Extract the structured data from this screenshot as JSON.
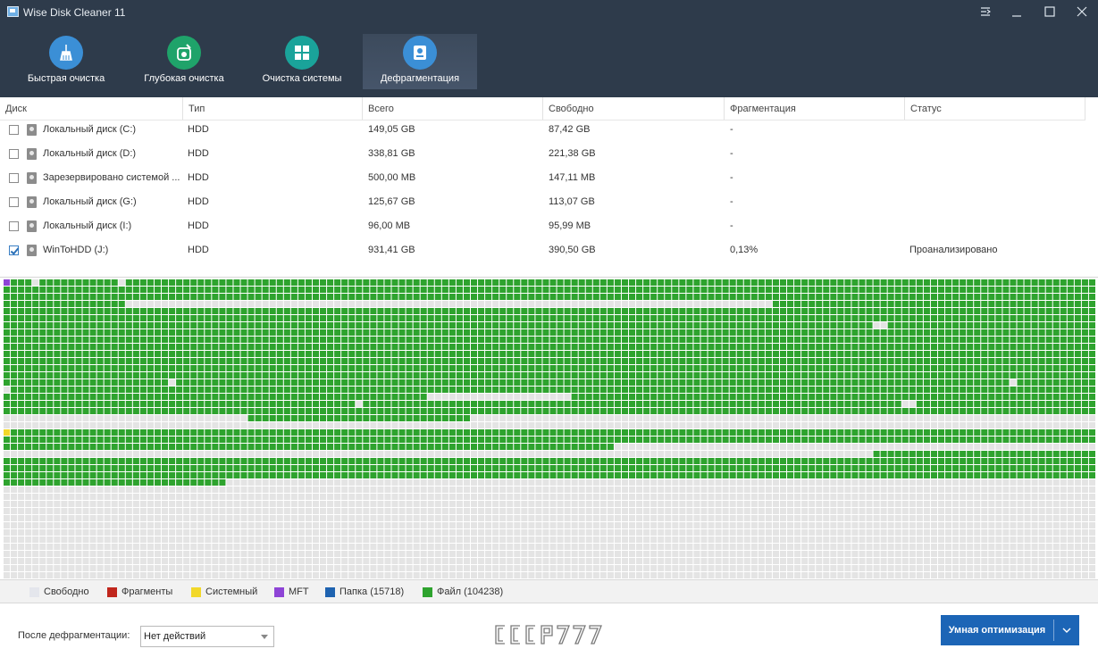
{
  "window": {
    "title": "Wise Disk Cleaner 11"
  },
  "tabs": [
    {
      "label": "Быстрая очистка",
      "icon": "broom-icon",
      "color": "#3b8fd6",
      "active": false
    },
    {
      "label": "Глубокая очистка",
      "icon": "deep-clean-icon",
      "color": "#1fa36a",
      "active": false
    },
    {
      "label": "Очистка системы",
      "icon": "windows-icon",
      "color": "#1aa39a",
      "active": false
    },
    {
      "label": "Дефрагментация",
      "icon": "defrag-icon",
      "color": "#3b8fd6",
      "active": true
    }
  ],
  "table": {
    "columns": [
      "Диск",
      "Тип",
      "Всего",
      "Свободно",
      "Фрагментация",
      "Статус"
    ],
    "rows": [
      {
        "checked": false,
        "disk": "Локальный диск (C:)",
        "type": "HDD",
        "total": "149,05 GB",
        "free": "87,42 GB",
        "frag": "-",
        "status": ""
      },
      {
        "checked": false,
        "disk": "Локальный диск (D:)",
        "type": "HDD",
        "total": "338,81 GB",
        "free": "221,38 GB",
        "frag": "-",
        "status": ""
      },
      {
        "checked": false,
        "disk": "Зарезервировано системой ...",
        "type": "HDD",
        "total": "500,00 MB",
        "free": "147,11 MB",
        "frag": "-",
        "status": ""
      },
      {
        "checked": false,
        "disk": "Локальный диск (G:)",
        "type": "HDD",
        "total": "125,67 GB",
        "free": "113,07 GB",
        "frag": "-",
        "status": ""
      },
      {
        "checked": false,
        "disk": "Локальный диск (I:)",
        "type": "HDD",
        "total": "96,00 MB",
        "free": "95,99 MB",
        "frag": "-",
        "status": ""
      },
      {
        "checked": true,
        "disk": "WinToHDD (J:)",
        "type": "HDD",
        "total": "931,41 GB",
        "free": "390,50 GB",
        "frag": "0,13%",
        "status": "Проанализировано"
      }
    ]
  },
  "disk_map": {
    "columns": 152,
    "rows": 42,
    "colors": {
      "free": "#e4e4e4",
      "fragment": "#c0261c",
      "system": "#f2d82a",
      "mft": "#8e44d6",
      "folder": "#1f63b0",
      "file": "#2ea32e"
    },
    "used_rows_end_partial": {
      "row": 28,
      "col": 31
    },
    "free_runs": [
      {
        "row": 0,
        "from": 4,
        "to": 4
      },
      {
        "row": 0,
        "from": 16,
        "to": 16
      },
      {
        "row": 3,
        "from": 17,
        "to": 106
      },
      {
        "row": 6,
        "from": 121,
        "to": 122
      },
      {
        "row": 14,
        "from": 23,
        "to": 23
      },
      {
        "row": 14,
        "from": 140,
        "to": 140
      },
      {
        "row": 15,
        "from": 0,
        "to": 0
      },
      {
        "row": 16,
        "from": 59,
        "to": 78
      },
      {
        "row": 17,
        "from": 49,
        "to": 49
      },
      {
        "row": 17,
        "from": 125,
        "to": 126
      },
      {
        "row": 19,
        "from": 0,
        "to": 11
      },
      {
        "row": 19,
        "from": 12,
        "to": 33
      },
      {
        "row": 19,
        "from": 65,
        "to": 151
      },
      {
        "row": 20,
        "from": 0,
        "to": 151
      },
      {
        "row": 23,
        "from": 85,
        "to": 151
      },
      {
        "row": 24,
        "from": 0,
        "to": 120
      }
    ],
    "special_cells": [
      {
        "row": 0,
        "col": 0,
        "type": "mft"
      },
      {
        "row": 21,
        "col": 0,
        "type": "system"
      }
    ]
  },
  "legend": [
    {
      "label": "Свободно",
      "color": "#e4e6ec"
    },
    {
      "label": "Фрагменты",
      "color": "#c0261c"
    },
    {
      "label": "Системный",
      "color": "#f2d82a"
    },
    {
      "label": "MFT",
      "color": "#8e44d6"
    },
    {
      "label": "Папка (15718)",
      "color": "#1f63b0"
    },
    {
      "label": "Файл (104238)",
      "color": "#2ea32e"
    }
  ],
  "footer": {
    "after_label": "После дефрагментации:",
    "after_value": "Нет действий",
    "watermark": "CCCP777",
    "smart_button": "Умная оптимизация"
  }
}
